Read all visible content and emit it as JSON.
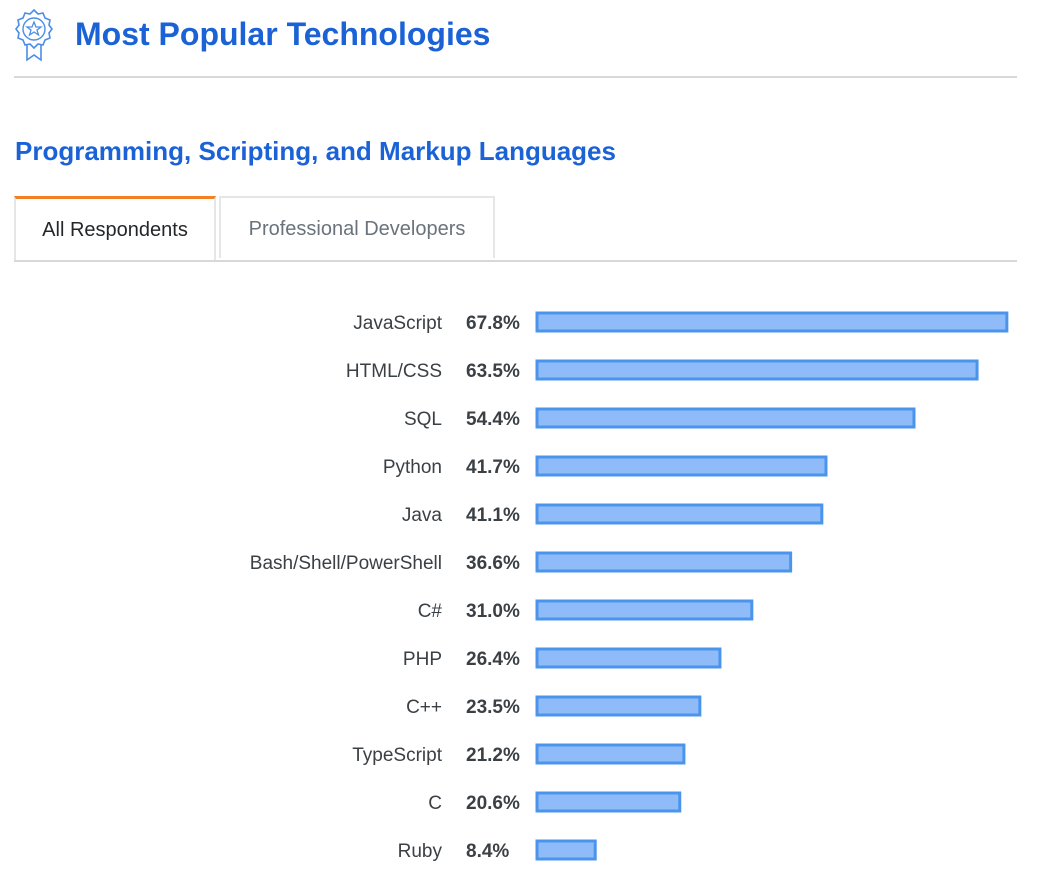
{
  "header": {
    "title": "Most Popular Technologies",
    "icon": "award-ribbon-icon"
  },
  "section": {
    "title": "Programming, Scripting, and Markup Languages"
  },
  "tabs": [
    {
      "label": "All Respondents",
      "active": true
    },
    {
      "label": "Professional Developers",
      "active": false
    }
  ],
  "colors": {
    "accent": "#1a62d6",
    "tab_active_border": "#f48024",
    "bar_fill": "#8fbcf8",
    "bar_stroke": "#4b94ec"
  },
  "chart_data": {
    "type": "bar",
    "orientation": "horizontal",
    "categories": [
      "JavaScript",
      "HTML/CSS",
      "SQL",
      "Python",
      "Java",
      "Bash/Shell/PowerShell",
      "C#",
      "PHP",
      "C++",
      "TypeScript",
      "C",
      "Ruby"
    ],
    "values": [
      67.8,
      63.5,
      54.4,
      41.7,
      41.1,
      36.6,
      31.0,
      26.4,
      23.5,
      21.2,
      20.6,
      8.4
    ],
    "value_labels": [
      "67.8%",
      "63.5%",
      "54.4%",
      "41.7%",
      "41.1%",
      "36.6%",
      "31.0%",
      "26.4%",
      "23.5%",
      "21.2%",
      "20.6%",
      "8.4%"
    ],
    "unit": "%",
    "title": "",
    "xlabel": "",
    "ylabel": "",
    "grid": false
  }
}
